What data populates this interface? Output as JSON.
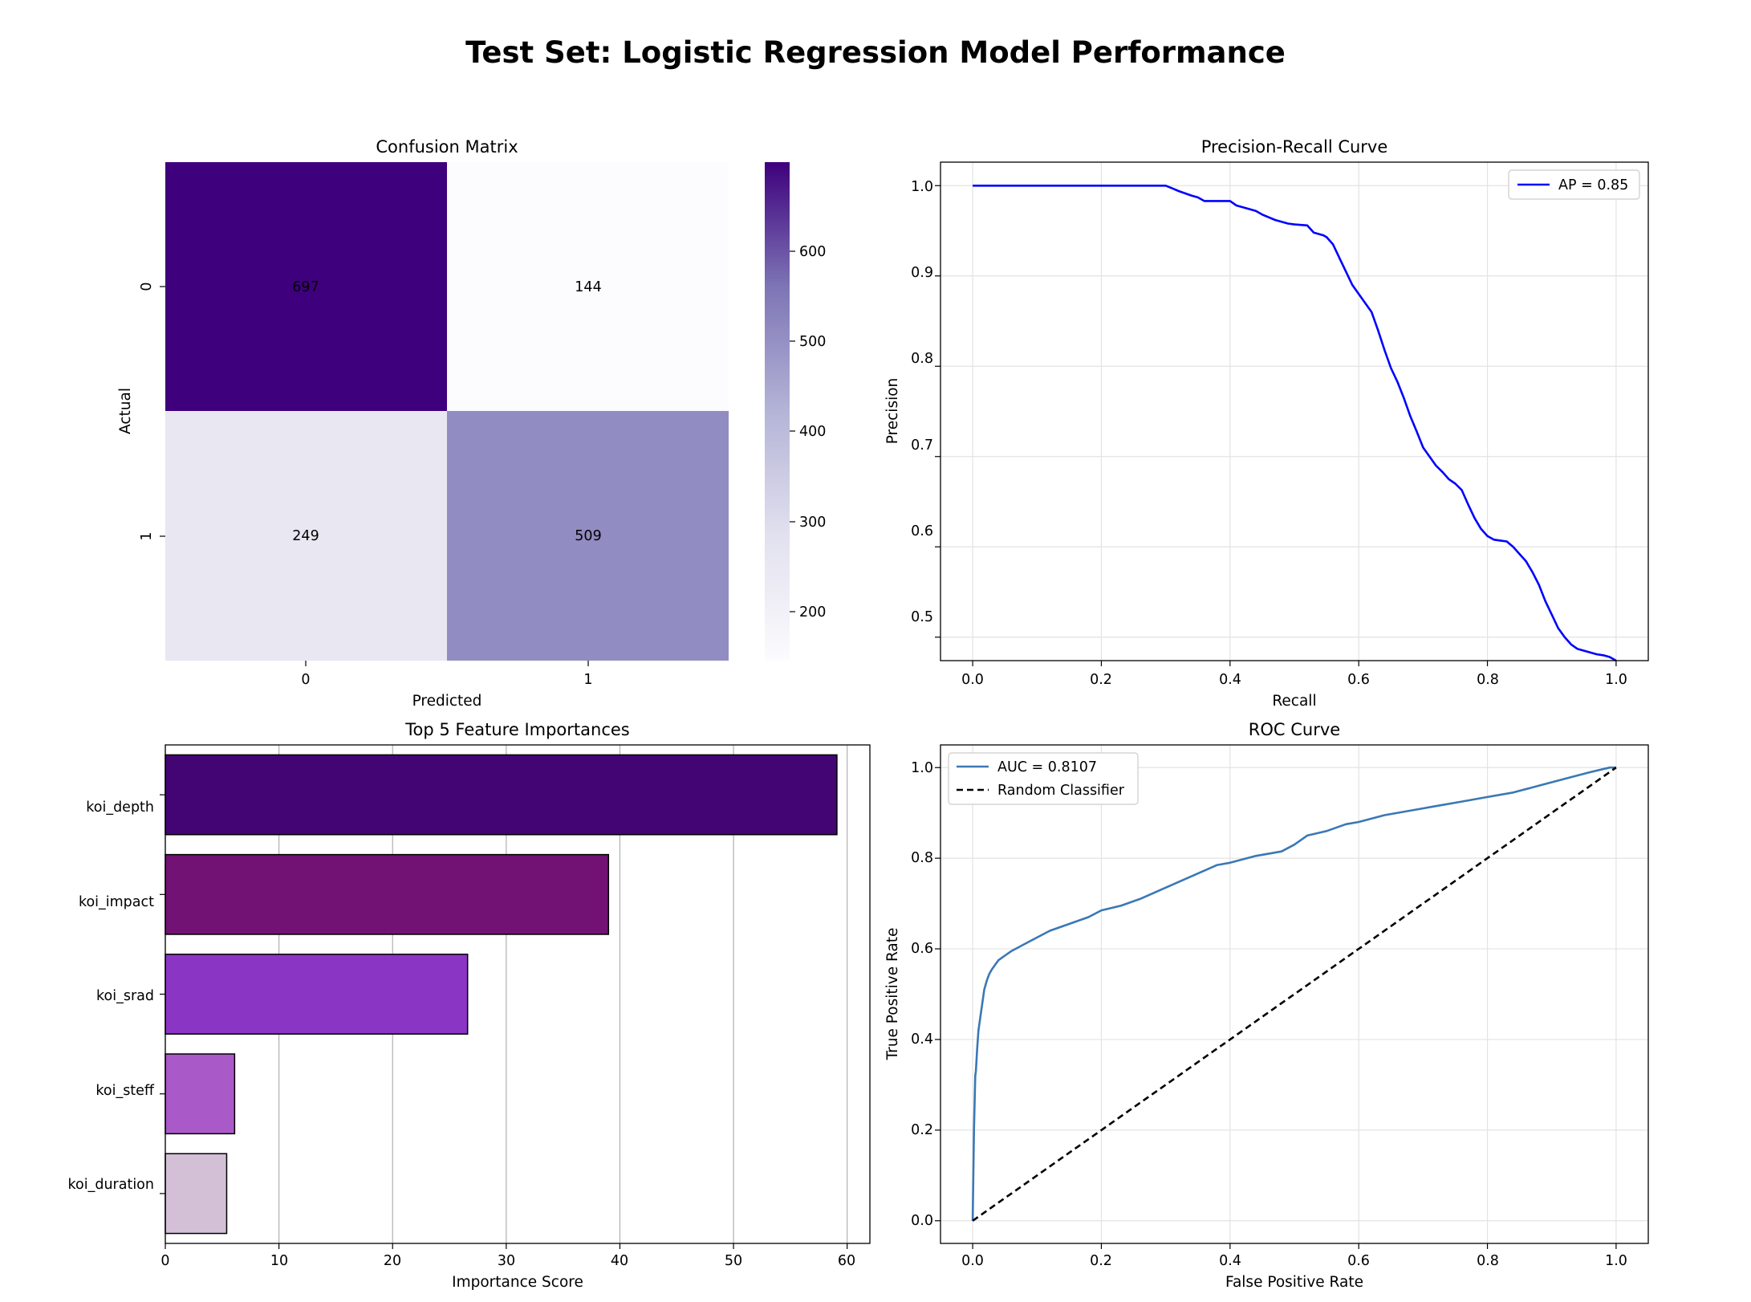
{
  "title": "Test Set: Logistic Regression Model Performance",
  "chart_data": [
    {
      "type": "heatmap",
      "title": "Confusion Matrix",
      "xlabel": "Predicted",
      "ylabel": "Actual",
      "x_categories": [
        "0",
        "1"
      ],
      "y_categories": [
        "0",
        "1"
      ],
      "values": [
        [
          697,
          144
        ],
        [
          249,
          509
        ]
      ],
      "colormap": "Purples",
      "colorbar": {
        "range": [
          144,
          697
        ],
        "ticks": [
          200,
          300,
          400,
          500,
          600
        ]
      }
    },
    {
      "type": "line",
      "title": "Precision-Recall Curve",
      "xlabel": "Recall",
      "ylabel": "Precision",
      "xlim": [
        -0.05,
        1.05
      ],
      "ylim": [
        0.474,
        1.026
      ],
      "xticks": [
        "0.0",
        "0.2",
        "0.4",
        "0.6",
        "0.8",
        "1.0"
      ],
      "yticks": [
        "0.5",
        "0.6",
        "0.7",
        "0.8",
        "0.9",
        "1.0"
      ],
      "grid": true,
      "legend_position": "top-right",
      "series": [
        {
          "name": "AP = 0.85",
          "color": "#0000ff",
          "x": [
            0,
            0.05,
            0.1,
            0.15,
            0.2,
            0.25,
            0.3,
            0.31,
            0.32,
            0.34,
            0.35,
            0.36,
            0.38,
            0.4,
            0.41,
            0.42,
            0.44,
            0.45,
            0.47,
            0.49,
            0.5,
            0.52,
            0.53,
            0.545,
            0.55,
            0.56,
            0.57,
            0.58,
            0.59,
            0.6,
            0.61,
            0.62,
            0.63,
            0.64,
            0.65,
            0.66,
            0.67,
            0.68,
            0.69,
            0.7,
            0.71,
            0.72,
            0.73,
            0.74,
            0.75,
            0.76,
            0.77,
            0.78,
            0.79,
            0.8,
            0.81,
            0.82,
            0.83,
            0.84,
            0.85,
            0.86,
            0.87,
            0.88,
            0.89,
            0.9,
            0.91,
            0.92,
            0.93,
            0.94,
            0.95,
            0.96,
            0.97,
            0.98,
            0.99,
            1.0
          ],
          "y": [
            1.0,
            1.0,
            1.0,
            1.0,
            1.0,
            1.0,
            1.0,
            0.997,
            0.994,
            0.989,
            0.987,
            0.983,
            0.983,
            0.983,
            0.978,
            0.976,
            0.972,
            0.968,
            0.962,
            0.958,
            0.957,
            0.956,
            0.948,
            0.945,
            0.943,
            0.935,
            0.92,
            0.905,
            0.89,
            0.88,
            0.87,
            0.86,
            0.84,
            0.818,
            0.798,
            0.783,
            0.765,
            0.745,
            0.728,
            0.71,
            0.7,
            0.69,
            0.683,
            0.675,
            0.67,
            0.663,
            0.647,
            0.632,
            0.62,
            0.612,
            0.608,
            0.607,
            0.606,
            0.6,
            0.592,
            0.584,
            0.572,
            0.558,
            0.54,
            0.525,
            0.51,
            0.5,
            0.492,
            0.487,
            0.485,
            0.483,
            0.481,
            0.48,
            0.478,
            0.474
          ]
        }
      ]
    },
    {
      "type": "bar",
      "orientation": "horizontal",
      "title": "Top 5 Feature Importances",
      "xlabel": "Importance Score",
      "ylabel": "",
      "xlim": [
        0,
        62
      ],
      "xticks": [
        "0",
        "10",
        "20",
        "30",
        "40",
        "50",
        "60"
      ],
      "grid": true,
      "categories": [
        "koi_depth",
        "koi_impact",
        "koi_srad",
        "koi_steff",
        "koi_duration"
      ],
      "values": [
        59.1,
        39.0,
        26.6,
        6.1,
        5.4
      ],
      "colors": [
        "#440574",
        "#721274",
        "#8b35c5",
        "#aa59c9",
        "#d3c0d7"
      ]
    },
    {
      "type": "line",
      "title": "ROC Curve",
      "xlabel": "False Positive Rate",
      "ylabel": "True Positive Rate",
      "xlim": [
        -0.05,
        1.05
      ],
      "ylim": [
        -0.05,
        1.05
      ],
      "xticks": [
        "0.0",
        "0.2",
        "0.4",
        "0.6",
        "0.8",
        "1.0"
      ],
      "yticks": [
        "0.0",
        "0.2",
        "0.4",
        "0.6",
        "0.8",
        "1.0"
      ],
      "grid": true,
      "legend_position": "top-left",
      "series": [
        {
          "name": "AUC = 0.8107",
          "color": "#3a78b5",
          "dash": false,
          "x": [
            0,
            0.002,
            0.004,
            0.005,
            0.007,
            0.009,
            0.012,
            0.015,
            0.018,
            0.022,
            0.026,
            0.03,
            0.035,
            0.04,
            0.05,
            0.06,
            0.08,
            0.1,
            0.12,
            0.15,
            0.18,
            0.2,
            0.23,
            0.26,
            0.3,
            0.34,
            0.38,
            0.4,
            0.44,
            0.48,
            0.5,
            0.52,
            0.55,
            0.58,
            0.6,
            0.64,
            0.68,
            0.72,
            0.76,
            0.8,
            0.84,
            0.88,
            0.92,
            0.96,
            0.99,
            1.0
          ],
          "y": [
            0,
            0.2,
            0.32,
            0.33,
            0.38,
            0.42,
            0.45,
            0.48,
            0.51,
            0.53,
            0.545,
            0.555,
            0.565,
            0.575,
            0.585,
            0.595,
            0.61,
            0.625,
            0.64,
            0.655,
            0.67,
            0.685,
            0.695,
            0.71,
            0.735,
            0.76,
            0.785,
            0.79,
            0.805,
            0.815,
            0.83,
            0.85,
            0.86,
            0.875,
            0.88,
            0.895,
            0.905,
            0.915,
            0.925,
            0.935,
            0.945,
            0.96,
            0.975,
            0.99,
            1.0,
            1.0
          ]
        },
        {
          "name": "Random Classifier",
          "color": "#000000",
          "dash": true,
          "x": [
            0,
            1
          ],
          "y": [
            0,
            1
          ]
        }
      ]
    }
  ]
}
